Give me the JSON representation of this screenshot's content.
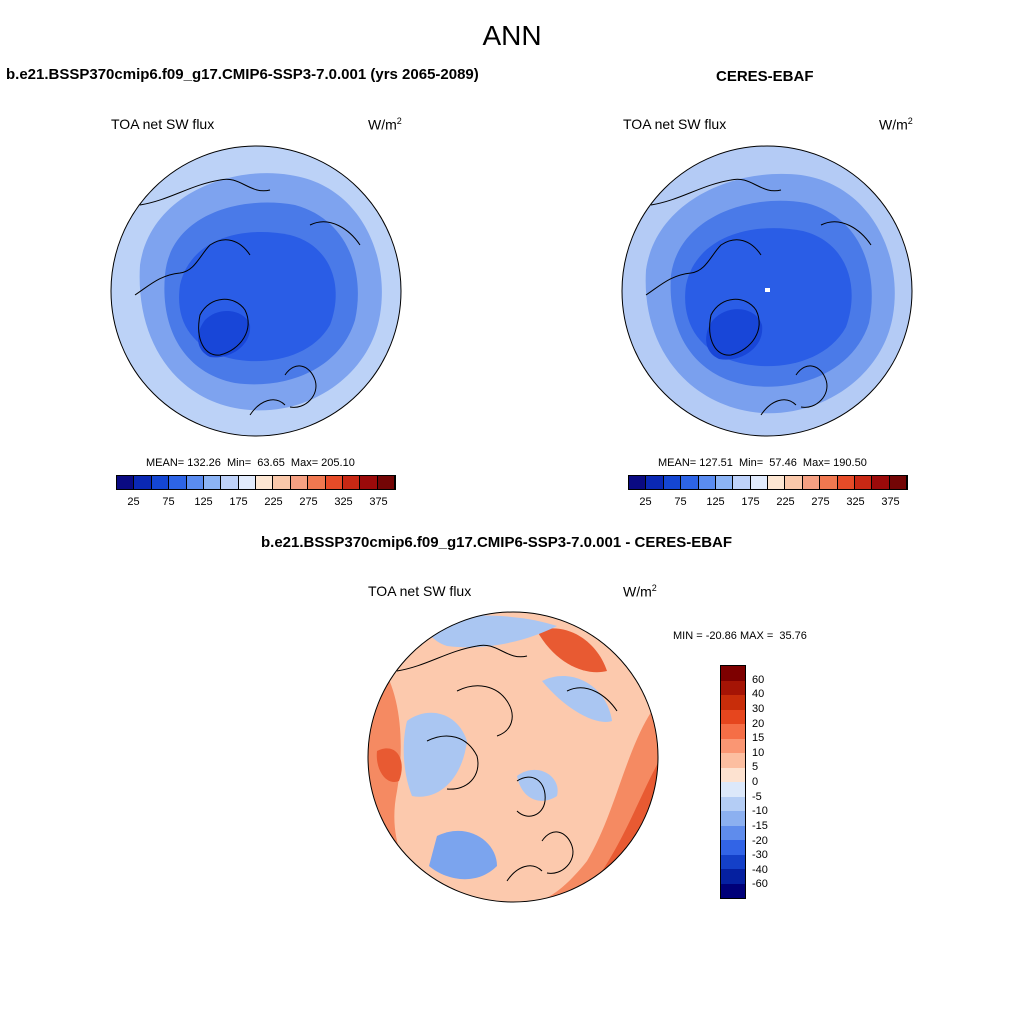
{
  "figure": {
    "title": "ANN"
  },
  "panels": {
    "model": {
      "title": "b.e21.BSSP370cmip6.f09_g17.CMIP6-SSP3-7.0.001 (yrs 2065-2089)",
      "variable": "TOA net SW flux",
      "units_base": "W/m",
      "units_exp": "2",
      "stats": "MEAN= 132.26  Min=  63.65  Max= 205.10"
    },
    "obs": {
      "title": "CERES-EBAF",
      "variable": "TOA net SW flux",
      "units_base": "W/m",
      "units_exp": "2",
      "stats": "MEAN= 127.51  Min=  57.46  Max= 190.50"
    },
    "diff": {
      "title": "b.e21.BSSP370cmip6.f09_g17.CMIP6-SSP3-7.0.001 - CERES-EBAF",
      "variable": "TOA net SW flux",
      "units_base": "W/m",
      "units_exp": "2",
      "stats": "MIN = -20.86 MAX =  35.76"
    }
  },
  "colorbars": {
    "absolute": {
      "ticks": [
        "25",
        "75",
        "125",
        "175",
        "225",
        "275",
        "325",
        "375"
      ],
      "colors": [
        "#0a0a82",
        "#0a28b4",
        "#1446d2",
        "#2d64e6",
        "#5a8cf0",
        "#8cb4f5",
        "#bed2fa",
        "#e1ebfd",
        "#fde6d2",
        "#fac8aa",
        "#f5a082",
        "#f07850",
        "#e64b28",
        "#c82814",
        "#9b0a0a",
        "#730505"
      ]
    },
    "difference": {
      "ticks": [
        "60",
        "40",
        "30",
        "20",
        "15",
        "10",
        "5",
        "0",
        "-5",
        "-10",
        "-15",
        "-20",
        "-30",
        "-40",
        "-60"
      ],
      "colors": [
        "#7d0000",
        "#a51405",
        "#c82d0a",
        "#e6461e",
        "#f56e46",
        "#fa9673",
        "#fcbea0",
        "#fde2d0",
        "#dce8fa",
        "#b4cdf5",
        "#8cb0f0",
        "#5f8cec",
        "#3264e6",
        "#1440c8",
        "#0520a0",
        "#000078"
      ]
    }
  },
  "map_colors": {
    "model_base": "#4a7ae8",
    "model_outer": "#bcd2f7",
    "model_mid": "#7ea3ef",
    "model_inner": "#2a5de6",
    "model_core": "#1846d8",
    "obs_base": "#4a7ae8",
    "obs_outer": "#b4cbf5",
    "obs_mid": "#7aa0ee",
    "obs_inner": "#2a5de6",
    "obs_core": "#1846d8",
    "diff_base": "#fcc9ad",
    "diff_pos": "#f58a62",
    "diff_strong": "#e85a32",
    "diff_neg": "#aac6f2",
    "diff_neg_strong": "#7ba4ee"
  }
}
